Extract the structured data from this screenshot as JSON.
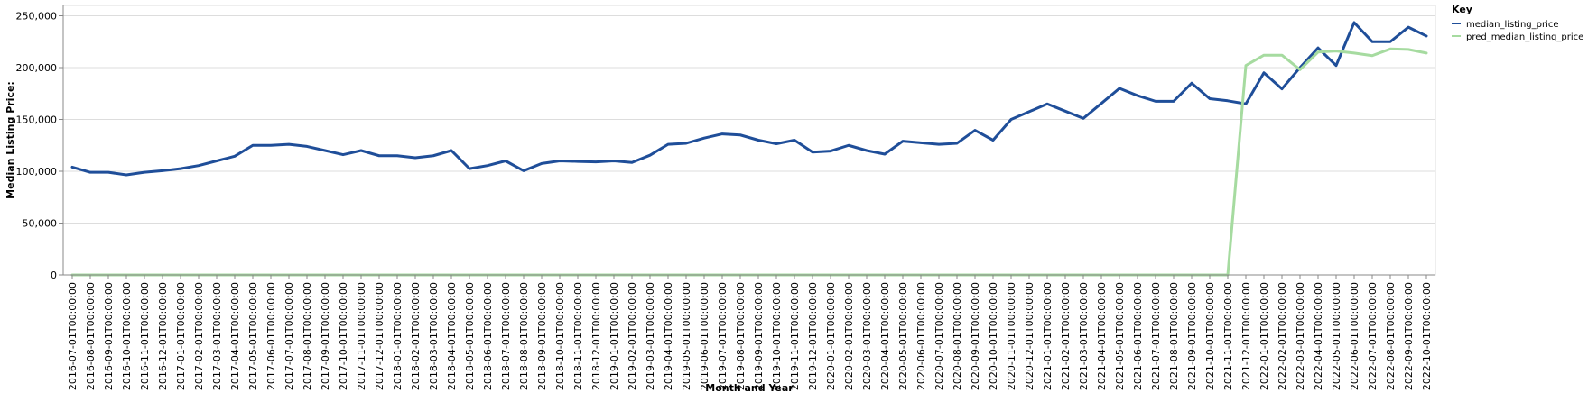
{
  "chart_data": {
    "type": "line",
    "xlabel": "Month and Year",
    "ylabel": "Median Listing Price:",
    "ylim": [
      0,
      260000
    ],
    "yticks": [
      0,
      50000,
      100000,
      150000,
      200000,
      250000
    ],
    "ytick_labels": [
      "0",
      "50,000",
      "100,000",
      "150,000",
      "200,000",
      "250,000"
    ],
    "grid": true,
    "legend_placement": "top-right",
    "legend_title": "Key",
    "x": [
      "2016-07-01T00:00:00",
      "2016-08-01T00:00:00",
      "2016-09-01T00:00:00",
      "2016-10-01T00:00:00",
      "2016-11-01T00:00:00",
      "2016-12-01T00:00:00",
      "2017-01-01T00:00:00",
      "2017-02-01T00:00:00",
      "2017-03-01T00:00:00",
      "2017-04-01T00:00:00",
      "2017-05-01T00:00:00",
      "2017-06-01T00:00:00",
      "2017-07-01T00:00:00",
      "2017-08-01T00:00:00",
      "2017-09-01T00:00:00",
      "2017-10-01T00:00:00",
      "2017-11-01T00:00:00",
      "2017-12-01T00:00:00",
      "2018-01-01T00:00:00",
      "2018-02-01T00:00:00",
      "2018-03-01T00:00:00",
      "2018-04-01T00:00:00",
      "2018-05-01T00:00:00",
      "2018-06-01T00:00:00",
      "2018-07-01T00:00:00",
      "2018-08-01T00:00:00",
      "2018-09-01T00:00:00",
      "2018-10-01T00:00:00",
      "2018-11-01T00:00:00",
      "2018-12-01T00:00:00",
      "2019-01-01T00:00:00",
      "2019-02-01T00:00:00",
      "2019-03-01T00:00:00",
      "2019-04-01T00:00:00",
      "2019-05-01T00:00:00",
      "2019-06-01T00:00:00",
      "2019-07-01T00:00:00",
      "2019-08-01T00:00:00",
      "2019-09-01T00:00:00",
      "2019-10-01T00:00:00",
      "2019-11-01T00:00:00",
      "2019-12-01T00:00:00",
      "2020-01-01T00:00:00",
      "2020-02-01T00:00:00",
      "2020-03-01T00:00:00",
      "2020-04-01T00:00:00",
      "2020-05-01T00:00:00",
      "2020-06-01T00:00:00",
      "2020-07-01T00:00:00",
      "2020-08-01T00:00:00",
      "2020-09-01T00:00:00",
      "2020-10-01T00:00:00",
      "2020-11-01T00:00:00",
      "2020-12-01T00:00:00",
      "2021-01-01T00:00:00",
      "2021-02-01T00:00:00",
      "2021-03-01T00:00:00",
      "2021-04-01T00:00:00",
      "2021-05-01T00:00:00",
      "2021-06-01T00:00:00",
      "2021-07-01T00:00:00",
      "2021-08-01T00:00:00",
      "2021-09-01T00:00:00",
      "2021-10-01T00:00:00",
      "2021-11-01T00:00:00",
      "2021-12-01T00:00:00",
      "2022-01-01T00:00:00",
      "2022-02-01T00:00:00",
      "2022-03-01T00:00:00",
      "2022-04-01T00:00:00",
      "2022-05-01T00:00:00",
      "2022-06-01T00:00:00",
      "2022-07-01T00:00:00",
      "2022-08-01T00:00:00",
      "2022-09-01T00:00:00",
      "2022-10-01T00:00:00"
    ],
    "series": [
      {
        "name": "median_listing_price",
        "color": "#1f4e99",
        "values": [
          104000,
          99000,
          99000,
          96500,
          99000,
          100500,
          102500,
          105500,
          110000,
          114500,
          125000,
          125000,
          126000,
          124000,
          120000,
          116000,
          120000,
          115000,
          115000,
          113000,
          115000,
          120000,
          102500,
          105500,
          110000,
          100500,
          107500,
          110000,
          109500,
          109000,
          110000,
          108500,
          115500,
          126000,
          127000,
          132000,
          136000,
          135000,
          130000,
          126500,
          130000,
          118500,
          119500,
          125000,
          120000,
          116500,
          129000,
          127500,
          126000,
          127000,
          139500,
          130000,
          150000,
          157500,
          165000,
          158000,
          151000,
          165500,
          180000,
          173000,
          167500,
          167500,
          185000,
          170000,
          168000,
          165000,
          195000,
          179500,
          200000,
          219000,
          202000,
          243500,
          225000,
          225000,
          239000,
          230500
        ]
      },
      {
        "name": "pred_median_listing_price",
        "color": "#a6dba0",
        "values": [
          0,
          0,
          0,
          0,
          0,
          0,
          0,
          0,
          0,
          0,
          0,
          0,
          0,
          0,
          0,
          0,
          0,
          0,
          0,
          0,
          0,
          0,
          0,
          0,
          0,
          0,
          0,
          0,
          0,
          0,
          0,
          0,
          0,
          0,
          0,
          0,
          0,
          0,
          0,
          0,
          0,
          0,
          0,
          0,
          0,
          0,
          0,
          0,
          0,
          0,
          0,
          0,
          0,
          0,
          0,
          0,
          0,
          0,
          0,
          0,
          0,
          0,
          0,
          0,
          0,
          202000,
          212000,
          212000,
          198000,
          215000,
          216000,
          214000,
          211500,
          218000,
          217500,
          214000
        ]
      }
    ]
  }
}
